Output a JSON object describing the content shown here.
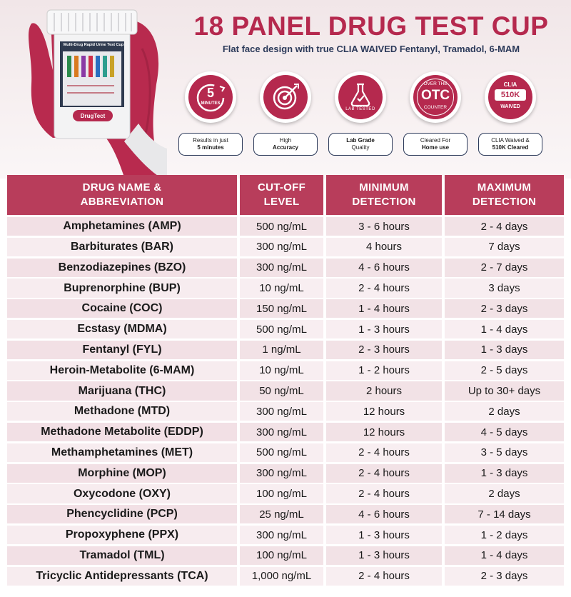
{
  "header": {
    "title": "18 PANEL DRUG TEST CUP",
    "subtitle": "Flat face design with true CLIA WAIVED Fentanyl, Tramadol, 6-MAM"
  },
  "product": {
    "cup_label": "Multi-Drug Rapid Urine Test Cup",
    "brand": "DrugTect"
  },
  "features": [
    {
      "icon": "stopwatch-5-minutes-icon",
      "badge_big": "5",
      "badge_small": "MINUTES",
      "line1": "Results in just",
      "line2": "5 minutes",
      "bold_line": 2
    },
    {
      "icon": "target-accuracy-icon",
      "line1": "High",
      "line2": "Accuracy",
      "bold_line": 2
    },
    {
      "icon": "lab-flask-icon",
      "badge_small": "LAB TESTED",
      "line1": "Lab Grade",
      "line2": "Quality",
      "bold_line": 1
    },
    {
      "icon": "otc-seal-icon",
      "badge_top": "OVER THE",
      "badge_big": "OTC",
      "badge_bottom": "COUNTER",
      "line1": "Cleared For",
      "line2": "Home use",
      "bold_line": 2
    },
    {
      "icon": "clia-510k-icon",
      "badge_top": "CLIA",
      "badge_big": "510K",
      "badge_bottom": "WAIVED",
      "line1": "CLIA Waived &",
      "line2": "510K Cleared",
      "bold_line": 0
    }
  ],
  "table": {
    "headers": [
      {
        "line1": "DRUG NAME &",
        "line2": "ABBREVIATION"
      },
      {
        "line1": "CUT-OFF",
        "line2": "LEVEL"
      },
      {
        "line1": "MINIMUM",
        "line2": "DETECTION"
      },
      {
        "line1": "MAXIMUM",
        "line2": "DETECTION"
      }
    ],
    "rows": [
      [
        "Amphetamines (AMP)",
        "500 ng/mL",
        "3 - 6 hours",
        "2 - 4 days"
      ],
      [
        "Barbiturates (BAR)",
        "300 ng/mL",
        "4 hours",
        "7 days"
      ],
      [
        "Benzodiazepines (BZO)",
        "300 ng/mL",
        "4 - 6 hours",
        "2 - 7 days"
      ],
      [
        "Buprenorphine (BUP)",
        "10 ng/mL",
        "2 - 4 hours",
        "3 days"
      ],
      [
        "Cocaine (COC)",
        "150 ng/mL",
        "1 - 4 hours",
        "2 - 3 days"
      ],
      [
        "Ecstasy (MDMA)",
        "500 ng/mL",
        "1 - 3 hours",
        "1 - 4 days"
      ],
      [
        "Fentanyl (FYL)",
        "1 ng/mL",
        "2 - 3 hours",
        "1 - 3 days"
      ],
      [
        "Heroin-Metabolite (6-MAM)",
        "10 ng/mL",
        "1 - 2 hours",
        "2 - 5 days"
      ],
      [
        "Marijuana (THC)",
        "50 ng/mL",
        "2 hours",
        "Up to 30+ days"
      ],
      [
        "Methadone (MTD)",
        "300 ng/mL",
        "12 hours",
        "2 days"
      ],
      [
        "Methadone Metabolite (EDDP)",
        "300 ng/mL",
        "12 hours",
        "4 - 5 days"
      ],
      [
        "Methamphetamines (MET)",
        "500 ng/mL",
        "2 - 4 hours",
        "3 - 5 days"
      ],
      [
        "Morphine (MOP)",
        "300 ng/mL",
        "2 - 4 hours",
        "1 - 3 days"
      ],
      [
        "Oxycodone (OXY)",
        "100 ng/mL",
        "2 - 4 hours",
        "2 days"
      ],
      [
        "Phencyclidine (PCP)",
        "25 ng/mL",
        "4 - 6 hours",
        "7 - 14 days"
      ],
      [
        "Propoxyphene (PPX)",
        "300 ng/mL",
        "1 - 3 hours",
        "1 - 2 days"
      ],
      [
        "Tramadol (TML)",
        "100 ng/mL",
        "1 - 3 hours",
        "1 - 4 days"
      ],
      [
        "Tricyclic Antidepressants (TCA)",
        "1,000 ng/mL",
        "2 - 4 hours",
        "2 - 3 days"
      ]
    ]
  },
  "colors": {
    "brand": "#b5294e",
    "header_bg": "#b83d5b",
    "navy": "#2c3a5a"
  }
}
